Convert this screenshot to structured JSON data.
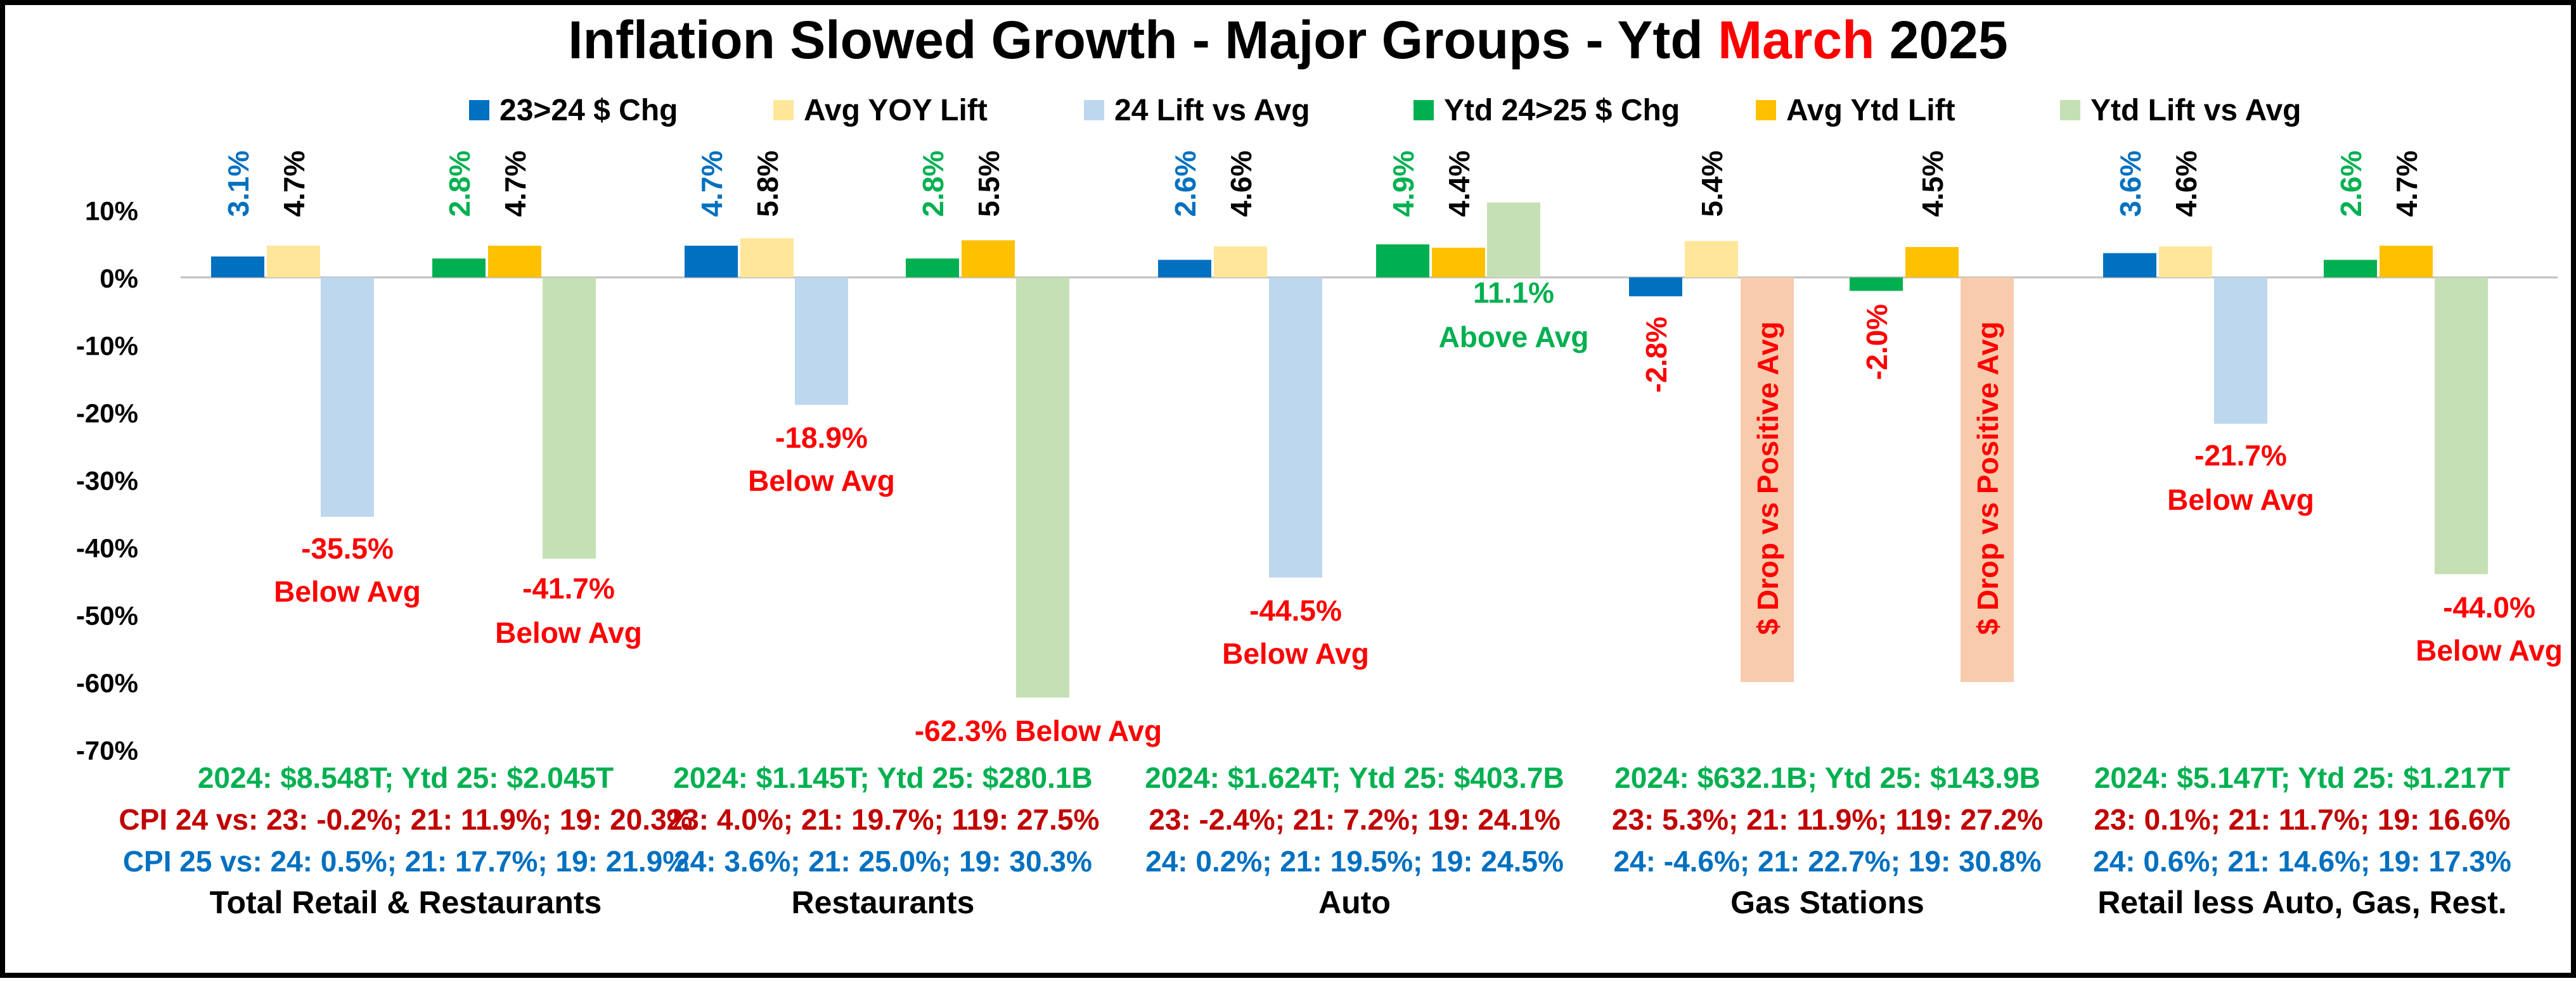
{
  "chart_data": {
    "type": "bar",
    "title": {
      "part1": "Inflation Slowed Growth - Major Groups - Ytd ",
      "part2": "March",
      "part3": " 2025"
    },
    "categories": [
      "Total Retail & Restaurants",
      "Restaurants",
      "Auto",
      "Gas Stations",
      "Retail less Auto, Gas, Rest."
    ],
    "series": [
      {
        "name": "23>24 $ Chg",
        "color": "#0070C0",
        "values": [
          3.1,
          4.7,
          2.6,
          -2.8,
          3.6
        ]
      },
      {
        "name": "Avg YOY Lift",
        "color": "#FFE699",
        "values": [
          4.7,
          5.8,
          4.6,
          5.4,
          4.6
        ]
      },
      {
        "name": "24 Lift vs Avg",
        "color": "#BDD7EE",
        "values": [
          -35.5,
          -18.9,
          -44.5,
          -60,
          -21.7
        ]
      },
      {
        "name": "Ytd 24>25 $ Chg",
        "color": "#00B050",
        "values": [
          2.8,
          2.8,
          4.9,
          -2.0,
          2.6
        ]
      },
      {
        "name": "Avg Ytd Lift",
        "color": "#FFC000",
        "values": [
          4.7,
          5.5,
          4.4,
          4.5,
          4.7
        ]
      },
      {
        "name": "Ytd Lift vs Avg",
        "color": "#C5E0B4",
        "values": [
          -41.7,
          -62.3,
          11.1,
          -60,
          -44.0
        ]
      }
    ],
    "special_bar_color": "#F8CBAD",
    "ylim": [
      -70,
      10
    ],
    "yticks": [
      "10%",
      "0%",
      "-10%",
      "-20%",
      "-30%",
      "-40%",
      "-50%",
      "-60%",
      "-70%"
    ],
    "bar_value_labels": [
      [
        "3.1%",
        "4.7%",
        "2.8%",
        "4.7%"
      ],
      [
        "4.7%",
        "5.8%",
        "2.8%",
        "5.5%"
      ],
      [
        "2.6%",
        "4.6%",
        "4.9%",
        "4.4%"
      ],
      [
        "5.4%",
        "4.5%"
      ],
      [
        "3.6%",
        "4.6%",
        "2.6%",
        "4.7%"
      ]
    ],
    "annotations": [
      [
        "-35.5%",
        "Below Avg",
        "-41.7%",
        "Below Avg"
      ],
      [
        "-18.9%",
        "Below Avg",
        "-62.3% Below Avg"
      ],
      [
        "-44.5%",
        "Below Avg",
        "11.1%",
        "Above Avg"
      ],
      [
        "-2.8%",
        "$ Drop vs Positive Avg",
        "-2.0%",
        "$ Drop vs Positive Avg"
      ],
      [
        "-21.7%",
        "Below Avg",
        "-44.0%",
        "Below Avg"
      ]
    ],
    "footnotes": [
      {
        "totals": "2024: $8.548T; Ytd 25: $2.045T",
        "cpi24": "CPI 24 vs: 23: -0.2%; 21: 11.9%; 19: 20.3%",
        "cpi25": "CPI 25 vs:  24: 0.5%; 21: 17.7%; 19: 21.9%"
      },
      {
        "totals": "2024: $1.145T; Ytd 25: $280.1B",
        "cpi24": "23: 4.0%; 21: 19.7%; 119: 27.5%",
        "cpi25": "24: 3.6%; 21: 25.0%; 19: 30.3%"
      },
      {
        "totals": "2024: $1.624T; Ytd 25: $403.7B",
        "cpi24": "23: -2.4%; 21: 7.2%; 19: 24.1%",
        "cpi25": "24: 0.2%; 21: 19.5%; 19: 24.5%"
      },
      {
        "totals": "2024: $632.1B; Ytd 25: $143.9B",
        "cpi24": "23: 5.3%; 21: 11.9%; 119: 27.2%",
        "cpi25": "24: -4.6%; 21: 22.7%; 19: 30.8%"
      },
      {
        "totals": "2024: $5.147T; Ytd 25: $1.217T",
        "cpi24": "23: 0.1%; 21: 11.7%; 19: 16.6%",
        "cpi25": "24: 0.6%; 21: 14.6%; 19: 17.3%"
      }
    ],
    "legend_placement": "top",
    "grid": false,
    "colors": {
      "title": "#000000",
      "title_highlight": "#FF0000",
      "red_text": "#FF0000",
      "green_text": "#00B050",
      "blue_text": "#0070C0",
      "dark_red_text": "#C00000",
      "black_text": "#000000"
    }
  }
}
